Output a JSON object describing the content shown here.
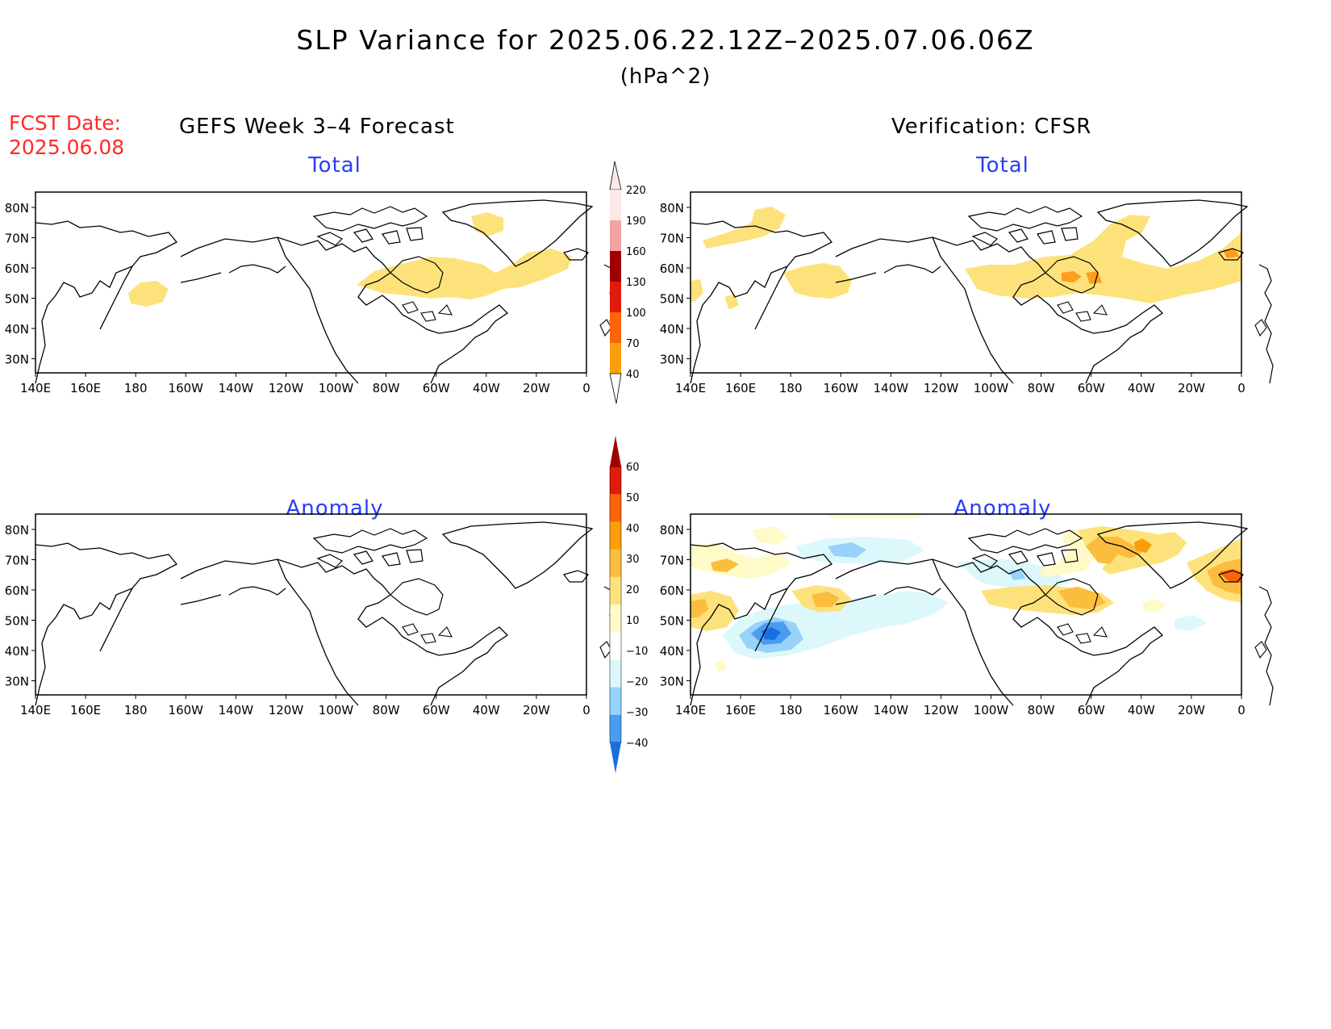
{
  "title": "SLP Variance for 2025.06.22.12Z–2025.07.06.06Z",
  "units": "(hPa^2)",
  "fcst_date": {
    "line1": "FCST Date:",
    "line2": "2025.06.08"
  },
  "left_heading": "GEFS Week 3–4 Forecast",
  "right_heading": "Verification: CFSR",
  "panels": {
    "top_left": {
      "subtitle": "Total"
    },
    "top_right": {
      "subtitle": "Total"
    },
    "bottom_left": {
      "subtitle": "Anomaly"
    },
    "bottom_right": {
      "subtitle": "Anomaly"
    }
  },
  "lat_labels": [
    "80N",
    "70N",
    "60N",
    "50N",
    "40N",
    "30N"
  ],
  "lon_labels": [
    "140E",
    "160E",
    "180",
    "160W",
    "140W",
    "120W",
    "100W",
    "80W",
    "60W",
    "40W",
    "20W",
    "0"
  ],
  "total_colorbar": {
    "labels": [
      "220",
      "190",
      "160",
      "130",
      "100",
      "70",
      "40"
    ],
    "colors": [
      "#fde8e8",
      "#f4a3a3",
      "#a00000",
      "#e01b0b",
      "#fb6408",
      "#fb9e0c",
      "#fde27b"
    ]
  },
  "anomaly_colorbar": {
    "labels": [
      "60",
      "50",
      "40",
      "30",
      "20",
      "10",
      "−10",
      "−20",
      "−30",
      "−40"
    ],
    "colors": [
      "#a00000",
      "#e01b0b",
      "#fb6408",
      "#fb9e0c",
      "#fbbd3e",
      "#fde27b",
      "#fefbc8",
      "#ffffff",
      "#dcf8fb",
      "#96d2fa",
      "#4a9cf0",
      "#1a6ee0"
    ]
  }
}
